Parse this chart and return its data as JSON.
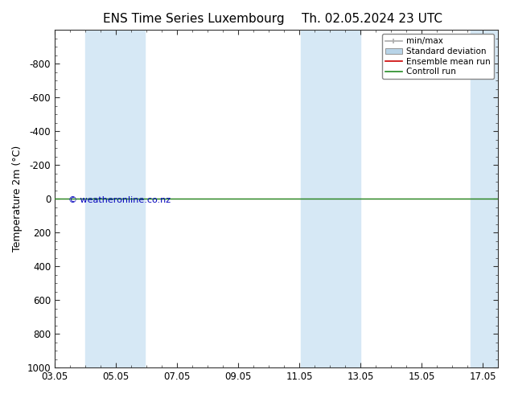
{
  "title_left": "ENS Time Series Luxembourg",
  "title_right": "Th. 02.05.2024 23 UTC",
  "ylabel": "Temperature 2m (°C)",
  "watermark": "© weatheronline.co.nz",
  "ylim_bottom": 1000,
  "ylim_top": -1000,
  "yticks": [
    -800,
    -600,
    -400,
    -200,
    0,
    200,
    400,
    600,
    800,
    1000
  ],
  "xtick_labels": [
    "03.05",
    "05.05",
    "07.05",
    "09.05",
    "11.05",
    "13.05",
    "15.05",
    "17.05"
  ],
  "x_values": [
    0,
    2,
    4,
    6,
    8,
    10,
    12,
    14
  ],
  "x_min": 0,
  "x_max": 14.5,
  "shaded_bands": [
    {
      "xmin": 1.0,
      "xmax": 2.95
    },
    {
      "xmin": 8.05,
      "xmax": 10.0
    },
    {
      "xmin": 13.6,
      "xmax": 14.5
    }
  ],
  "shaded_color": "#d6e8f5",
  "control_run_y": 0,
  "ensemble_mean_y": 0,
  "control_run_color": "#228B22",
  "ensemble_mean_color": "#cc0000",
  "minmax_color": "#aaaaaa",
  "stddev_color": "#b8d4e8",
  "background_color": "#ffffff",
  "legend_labels": [
    "min/max",
    "Standard deviation",
    "Ensemble mean run",
    "Controll run"
  ],
  "border_color": "#333333",
  "title_fontsize": 11,
  "tick_fontsize": 8.5,
  "ylabel_fontsize": 9,
  "watermark_color": "#0000bb",
  "watermark_fontsize": 8
}
